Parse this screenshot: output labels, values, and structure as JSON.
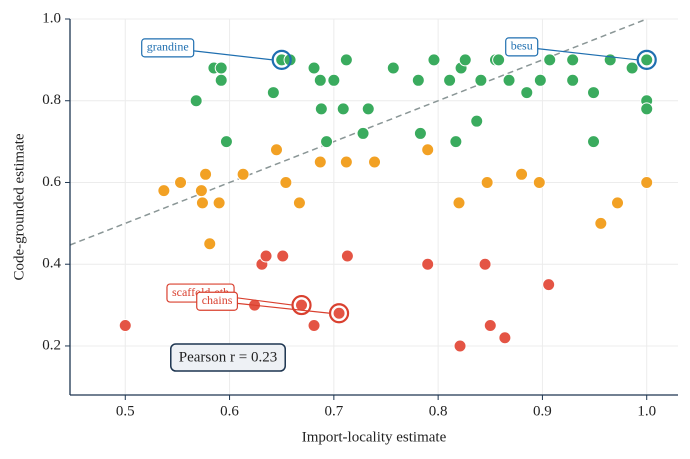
{
  "chart_data": {
    "type": "scatter",
    "xlabel": "Import-locality estimate",
    "ylabel": "Code-grounded estimate",
    "xlim": [
      0.447,
      1.03
    ],
    "ylim": [
      0.08,
      1.0
    ],
    "xticks": [
      0.5,
      0.6,
      0.7,
      0.8,
      0.9,
      {
        "value": 1.0,
        "label": "1.0"
      }
    ],
    "yticks": [
      0.2,
      0.4,
      0.6,
      0.8,
      {
        "value": 1.0,
        "label": "1.0"
      }
    ],
    "grid": true,
    "series": [
      {
        "color": "#3aab5e",
        "x": [
          0.568,
          0.585,
          0.592,
          0.592,
          0.597,
          0.642,
          0.65,
          0.658,
          0.681,
          0.687,
          0.688,
          0.693,
          0.7,
          0.709,
          0.712,
          0.728,
          0.733,
          0.757,
          0.781,
          0.783,
          0.796,
          0.811,
          0.817,
          0.822,
          0.826,
          0.837,
          0.841,
          0.855,
          0.858,
          0.868,
          0.885,
          0.898,
          0.907,
          0.929,
          0.929,
          0.949,
          0.949,
          0.965,
          0.986,
          1.0,
          1.0,
          1.0
        ],
        "values": [
          0.8,
          0.88,
          0.88,
          0.85,
          0.7,
          0.82,
          0.9,
          0.9,
          0.88,
          0.85,
          0.78,
          0.7,
          0.85,
          0.78,
          0.9,
          0.72,
          0.78,
          0.88,
          0.85,
          0.72,
          0.9,
          0.85,
          0.7,
          0.88,
          0.9,
          0.75,
          0.85,
          0.9,
          0.9,
          0.85,
          0.82,
          0.85,
          0.9,
          0.9,
          0.85,
          0.82,
          0.7,
          0.9,
          0.88,
          0.9,
          0.8,
          0.78
        ]
      },
      {
        "color": "#f2a124",
        "x": [
          0.537,
          0.553,
          0.577,
          0.573,
          0.574,
          0.59,
          0.581,
          0.613,
          0.645,
          0.654,
          0.667,
          0.687,
          0.712,
          0.739,
          0.79,
          0.82,
          0.847,
          0.88,
          0.897,
          0.956,
          0.972,
          1.0
        ],
        "values": [
          0.58,
          0.6,
          0.62,
          0.58,
          0.55,
          0.55,
          0.45,
          0.62,
          0.68,
          0.6,
          0.55,
          0.65,
          0.65,
          0.65,
          0.68,
          0.55,
          0.6,
          0.62,
          0.6,
          0.5,
          0.55,
          0.6
        ]
      },
      {
        "color": "#e45444",
        "x": [
          0.5,
          0.631,
          0.635,
          0.651,
          0.624,
          0.669,
          0.681,
          0.705,
          0.713,
          0.79,
          0.821,
          0.845,
          0.85,
          0.864,
          0.906
        ],
        "values": [
          0.25,
          0.4,
          0.42,
          0.42,
          0.3,
          0.3,
          0.25,
          0.28,
          0.42,
          0.4,
          0.2,
          0.4,
          0.25,
          0.22,
          0.35
        ]
      }
    ],
    "annotations": [
      {
        "text": "grandine",
        "x": 0.65,
        "y": 0.9,
        "color": "#1f6fb0"
      },
      {
        "text": "besu",
        "x": 1.0,
        "y": 0.9,
        "color": "#1f6fb0"
      },
      {
        "text": "scaffold-eth",
        "x": 0.669,
        "y": 0.3,
        "color": "#d9402f"
      },
      {
        "text": "chains",
        "x": 0.705,
        "y": 0.28,
        "color": "#d9402f"
      }
    ],
    "stat_label": "Pearson r = 0.23"
  }
}
